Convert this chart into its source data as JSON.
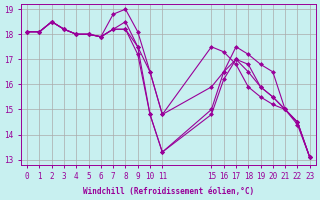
{
  "xlabel": "Windchill (Refroidissement éolien,°C)",
  "bg_color": "#c8f0f0",
  "line_color": "#990099",
  "grid_color": "#aaaaaa",
  "xlim": [
    -0.5,
    23.5
  ],
  "ylim": [
    12.8,
    19.2
  ],
  "yticks": [
    13,
    14,
    15,
    16,
    17,
    18,
    19
  ],
  "xticks": [
    0,
    1,
    2,
    3,
    4,
    5,
    6,
    7,
    8,
    9,
    10,
    11,
    15,
    16,
    17,
    18,
    19,
    20,
    21,
    22,
    23
  ],
  "series_x": [
    0,
    1,
    2,
    3,
    4,
    5,
    6,
    7,
    8,
    9,
    10,
    11,
    15,
    16,
    17,
    18,
    19,
    20,
    21,
    22,
    23
  ],
  "line1_y": [
    18.1,
    18.1,
    18.5,
    18.2,
    18.0,
    18.0,
    17.9,
    18.8,
    19.0,
    18.1,
    16.5,
    14.8,
    17.5,
    17.3,
    16.8,
    15.9,
    15.5,
    15.2,
    15.0,
    14.4,
    13.1
  ],
  "line2_y": [
    18.1,
    18.1,
    18.5,
    18.2,
    18.0,
    18.0,
    17.9,
    18.2,
    18.5,
    17.5,
    14.8,
    13.3,
    15.0,
    16.5,
    17.5,
    17.2,
    16.8,
    16.5,
    15.0,
    14.5,
    13.1
  ],
  "line3_y": [
    18.1,
    18.1,
    18.5,
    18.2,
    18.0,
    18.0,
    17.9,
    18.2,
    18.2,
    17.2,
    14.8,
    13.3,
    14.8,
    16.2,
    17.0,
    16.8,
    15.9,
    15.5,
    15.0,
    14.5,
    13.1
  ],
  "line4_y": [
    18.1,
    18.1,
    18.5,
    18.2,
    18.0,
    18.0,
    17.9,
    18.2,
    18.2,
    17.5,
    16.5,
    14.8,
    15.9,
    16.5,
    17.0,
    16.5,
    15.9,
    15.5,
    15.0,
    14.5,
    13.1
  ]
}
